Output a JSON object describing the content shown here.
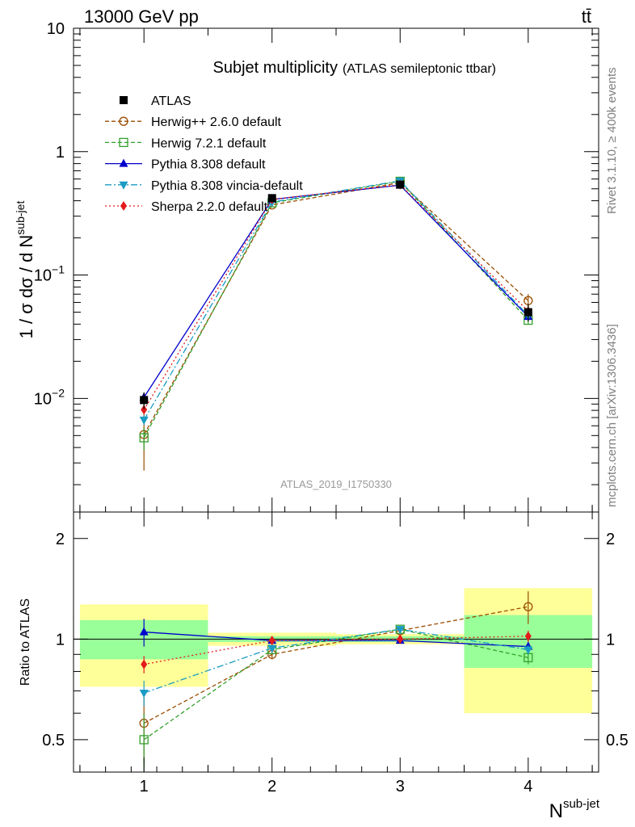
{
  "header": {
    "energy": "13000 GeV pp",
    "process": "tt̄"
  },
  "side_labels": {
    "rivet": "Rivet 3.1.10, ≥ 400k events",
    "source": "mcplots.cern.ch [arXiv:1306.3436]"
  },
  "chart_data": [
    {
      "type": "line",
      "title": "Subjet multiplicity",
      "subtitle": "(ATLAS semileptonic ttbar)",
      "ylabel": "1 / σ dσ / d N^sub-jet",
      "ylabel_parts": {
        "main": "1 / σ dσ / d N",
        "sup": "sub-jet"
      },
      "yscale": "log",
      "ylim": [
        0.0012,
        10
      ],
      "xlim": [
        0.45,
        4.55
      ],
      "y_ticks": [
        {
          "v": 0.01,
          "base": "10",
          "exp": "−2"
        },
        {
          "v": 0.1,
          "base": "10",
          "exp": "−1"
        },
        {
          "v": 1,
          "base": "1",
          "exp": ""
        },
        {
          "v": 10,
          "base": "10",
          "exp": ""
        }
      ],
      "reference_label": "ATLAS_2019_I1750330",
      "legend_position": "top-left",
      "x": [
        1,
        2,
        3,
        4
      ],
      "data": {
        "name": "ATLAS",
        "values": [
          0.0097,
          0.42,
          0.54,
          0.05
        ],
        "errors": [
          0.0015,
          0.02,
          0.02,
          0.008
        ]
      },
      "series": [
        {
          "name": "Herwig++ 2.6.0 default",
          "color": "#994c00",
          "marker": "open-circle",
          "dash": "5,3",
          "values": [
            0.0051,
            0.37,
            0.56,
            0.062
          ],
          "errors": [
            0.0025,
            0.01,
            0.01,
            0.008
          ]
        },
        {
          "name": "Herwig 7.2.1 default",
          "color": "#33a02c",
          "marker": "open-square",
          "dash": "5,3",
          "values": [
            0.0048,
            0.385,
            0.575,
            0.043
          ],
          "errors": [
            0.001,
            0.01,
            0.01,
            0.003
          ]
        },
        {
          "name": "Pythia 8.308 default",
          "color": "#0000cc",
          "marker": "triangle-up",
          "dash": "",
          "values": [
            0.0102,
            0.41,
            0.535,
            0.046
          ],
          "errors": [
            0.0008,
            0.005,
            0.005,
            0.002
          ]
        },
        {
          "name": "Pythia 8.308 vincia-default",
          "color": "#1a9cc4",
          "marker": "triangle-down",
          "dash": "8,3,2,3",
          "values": [
            0.0067,
            0.39,
            0.58,
            0.047
          ],
          "errors": [
            0.0006,
            0.005,
            0.005,
            0.002
          ]
        },
        {
          "name": "Sherpa 2.2.0 default",
          "color": "#e41a1c",
          "marker": "diamond",
          "dash": "2,3",
          "values": [
            0.0081,
            0.41,
            0.54,
            0.051
          ],
          "errors": [
            0.0006,
            0.005,
            0.005,
            0.002
          ]
        }
      ]
    },
    {
      "type": "line",
      "ylabel": "Ratio to ATLAS",
      "xlabel": "N^sub-jet",
      "xlabel_parts": {
        "main": "N",
        "sup": "sub-jet"
      },
      "yscale": "log",
      "ylim": [
        0.4,
        2.4
      ],
      "xlim": [
        0.45,
        4.55
      ],
      "x_ticks": [
        "1",
        "2",
        "3",
        "4"
      ],
      "y_ticks": [
        {
          "v": 0.5,
          "label": "0.5"
        },
        {
          "v": 1,
          "label": "1"
        },
        {
          "v": 2,
          "label": "2"
        }
      ],
      "bands": [
        {
          "x": [
            0.5,
            1.5
          ],
          "stat": [
            0.87,
            1.14
          ],
          "total": [
            0.72,
            1.27
          ]
        },
        {
          "x": [
            1.5,
            2.5
          ],
          "stat": [
            0.98,
            1.02
          ],
          "total": [
            0.955,
            1.045
          ]
        },
        {
          "x": [
            2.5,
            3.5
          ],
          "stat": [
            0.98,
            1.02
          ],
          "total": [
            0.965,
            1.035
          ]
        },
        {
          "x": [
            3.5,
            4.5
          ],
          "stat": [
            0.82,
            1.18
          ],
          "total": [
            0.6,
            1.42
          ]
        }
      ],
      "series": [
        {
          "name": "Herwig++ 2.6.0 default",
          "values": [
            0.56,
            0.9,
            1.06,
            1.25
          ],
          "errors": [
            0.14,
            0.03,
            0.02,
            0.14
          ]
        },
        {
          "name": "Herwig 7.2.1 default",
          "values": [
            0.5,
            0.93,
            1.07,
            0.88
          ],
          "errors": [
            0.1,
            0.02,
            0.02,
            0.04
          ]
        },
        {
          "name": "Pythia 8.308 default",
          "values": [
            1.05,
            0.99,
            0.99,
            0.95
          ],
          "errors": [
            0.1,
            0.01,
            0.01,
            0.03
          ]
        },
        {
          "name": "Pythia 8.308 vincia-default",
          "values": [
            0.69,
            0.94,
            1.07,
            0.93
          ],
          "errors": [
            0.06,
            0.01,
            0.01,
            0.03
          ]
        },
        {
          "name": "Sherpa 2.2.0 default",
          "values": [
            0.84,
            0.99,
            1.0,
            1.02
          ],
          "errors": [
            0.05,
            0.01,
            0.01,
            0.04
          ]
        }
      ]
    }
  ]
}
